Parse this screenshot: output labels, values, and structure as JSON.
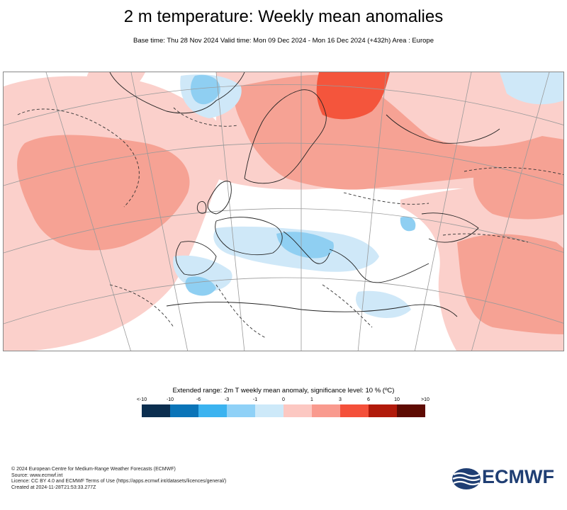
{
  "header": {
    "title": "2 m temperature: Weekly mean anomalies",
    "subtitle": "Base time: Thu 28 Nov 2024 Valid time: Mon 09 Dec 2024 - Mon 16 Dec 2024 (+432h) Area : Europe"
  },
  "legend": {
    "title": "Extended range: 2m T weekly mean anomaly, significance level: 10 % (ºC)",
    "ticks": [
      "<-10",
      "-10",
      "-6",
      "-3",
      "-1",
      "0",
      "1",
      "3",
      "6",
      "10",
      ">10"
    ],
    "colors": [
      "#0b2e4f",
      "#0a74b8",
      "#3bb3f0",
      "#8fd1f7",
      "#cde9f9",
      "#fcc8c2",
      "#f99a8e",
      "#f4503a",
      "#b11a0a",
      "#5e0b03"
    ]
  },
  "map": {
    "colors": {
      "weak_warm": "#fbd0cb",
      "moderate_warm": "#f6a294",
      "strong_warm": "#f4553c",
      "weak_cold": "#cfe8f8",
      "moderate_cold": "#8fcff2",
      "land_line": "#222222",
      "grid_line": "#9a9a9a"
    }
  },
  "footer": {
    "line1": "© 2024 European Centre for Medium-Range Weather Forecasts (ECMWF)",
    "line2": "Source: www.ecmwf.int",
    "line3": "Licence: CC BY 4.0 and ECMWF Terms of Use (https://apps.ecmwf.int/datasets/licences/general/)",
    "line4": "Created at 2024-11-28T21:53:33.277Z",
    "logo_text": "ECMWF"
  }
}
